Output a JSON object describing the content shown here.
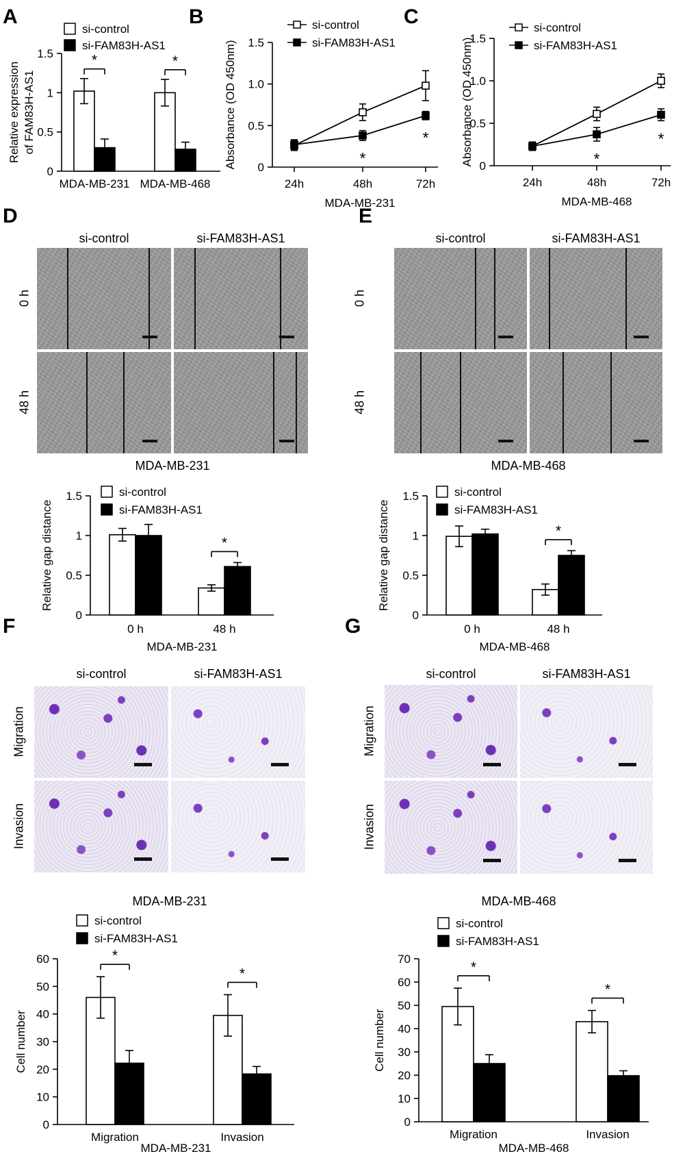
{
  "figure": {
    "panel_letters": [
      "A",
      "B",
      "C",
      "D",
      "E",
      "F",
      "G"
    ],
    "legend_labels": [
      "si-control",
      "si-FAM83H-AS1"
    ],
    "significance_mark": "*",
    "colors": {
      "control_fill": "#ffffff",
      "knockdown_fill": "#000000",
      "line": "#000000"
    }
  },
  "panel_D_images": {
    "col_headers": [
      "si-control",
      "si-FAM83H-AS1"
    ],
    "row_labels": [
      "0 h",
      "48 h"
    ],
    "caption": "MDA-MB-231"
  },
  "panel_E_images": {
    "col_headers": [
      "si-control",
      "si-FAM83H-AS1"
    ],
    "row_labels": [
      "0 h",
      "48 h"
    ],
    "caption": "MDA-MB-468"
  },
  "panel_F_images": {
    "col_headers": [
      "si-control",
      "si-FAM83H-AS1"
    ],
    "row_labels": [
      "Migration",
      "Invasion"
    ],
    "caption": "MDA-MB-231"
  },
  "panel_G_images": {
    "col_headers": [
      "si-control",
      "si-FAM83H-AS1"
    ],
    "row_labels": [
      "Migration",
      "Invasion"
    ],
    "caption": "MDA-MB-468"
  },
  "chart_data": [
    {
      "panel": "A",
      "type": "bar",
      "ylabel": "Relative expression of FAM83H-AS1",
      "xlabel": "",
      "categories": [
        "MDA-MB-231",
        "MDA-MB-468"
      ],
      "yticks": [
        0,
        0.5,
        1,
        1.5
      ],
      "ylim": [
        0,
        1.5
      ],
      "series": [
        {
          "name": "si-control",
          "values": [
            1.02,
            1.0
          ],
          "errors": [
            0.16,
            0.17
          ]
        },
        {
          "name": "si-FAM83H-AS1",
          "values": [
            0.3,
            0.28
          ],
          "errors": [
            0.11,
            0.09
          ]
        }
      ],
      "significance": [
        "*",
        "*"
      ]
    },
    {
      "panel": "B",
      "type": "line",
      "ylabel": "Absorbance (OD 450nm)",
      "xlabel": "MDA-MB-231",
      "categories": [
        "24h",
        "48h",
        "72h"
      ],
      "yticks": [
        0,
        0.5,
        1.0,
        1.5
      ],
      "ylim": [
        0,
        1.5
      ],
      "series": [
        {
          "name": "si-control",
          "values": [
            0.26,
            0.66,
            0.98
          ],
          "errors": [
            0.06,
            0.1,
            0.18
          ]
        },
        {
          "name": "si-FAM83H-AS1",
          "values": [
            0.27,
            0.38,
            0.62
          ],
          "errors": [
            0.06,
            0.06,
            0.05
          ]
        }
      ],
      "significance": [
        "",
        "*",
        "*"
      ]
    },
    {
      "panel": "C",
      "type": "line",
      "ylabel": "Absorbance (OD 450nm)",
      "xlabel": "MDA-MB-468",
      "categories": [
        "24h",
        "48h",
        "72h"
      ],
      "yticks": [
        0,
        0.5,
        1.0,
        1.5
      ],
      "ylim": [
        0,
        1.5
      ],
      "series": [
        {
          "name": "si-control",
          "values": [
            0.23,
            0.61,
            1.0
          ],
          "errors": [
            0.05,
            0.08,
            0.08
          ]
        },
        {
          "name": "si-FAM83H-AS1",
          "values": [
            0.23,
            0.37,
            0.6
          ],
          "errors": [
            0.05,
            0.08,
            0.07
          ]
        }
      ],
      "significance": [
        "",
        "*",
        "*"
      ]
    },
    {
      "panel": "D",
      "type": "bar",
      "ylabel": "Relative gap distance",
      "xlabel": "MDA-MB-231",
      "categories": [
        "0 h",
        "48 h"
      ],
      "yticks": [
        0,
        0.5,
        1,
        1.5
      ],
      "ylim": [
        0,
        1.5
      ],
      "series": [
        {
          "name": "si-control",
          "values": [
            1.01,
            0.34
          ],
          "errors": [
            0.08,
            0.04
          ]
        },
        {
          "name": "si-FAM83H-AS1",
          "values": [
            1.0,
            0.61
          ],
          "errors": [
            0.14,
            0.05
          ]
        }
      ],
      "significance": [
        "",
        "*"
      ]
    },
    {
      "panel": "E",
      "type": "bar",
      "ylabel": "Relative gap distance",
      "xlabel": "MDA-MB-468",
      "categories": [
        "0 h",
        "48 h"
      ],
      "yticks": [
        0,
        0.5,
        1,
        1.5
      ],
      "ylim": [
        0,
        1.5
      ],
      "series": [
        {
          "name": "si-control",
          "values": [
            0.99,
            0.32
          ],
          "errors": [
            0.13,
            0.07
          ]
        },
        {
          "name": "si-FAM83H-AS1",
          "values": [
            1.02,
            0.75
          ],
          "errors": [
            0.06,
            0.06
          ]
        }
      ],
      "significance": [
        "",
        "*"
      ]
    },
    {
      "panel": "F",
      "type": "bar",
      "ylabel": "Cell number",
      "xlabel": "MDA-MB-231",
      "categories": [
        "Migration",
        "Invasion"
      ],
      "yticks": [
        0,
        10,
        20,
        30,
        40,
        50,
        60
      ],
      "ylim": [
        0,
        60
      ],
      "series": [
        {
          "name": "si-control",
          "values": [
            46,
            39.5
          ],
          "errors": [
            7.5,
            7.5
          ]
        },
        {
          "name": "si-FAM83H-AS1",
          "values": [
            22.2,
            18.3
          ],
          "errors": [
            4.6,
            2.7
          ]
        }
      ],
      "significance": [
        "*",
        "*"
      ]
    },
    {
      "panel": "G",
      "type": "bar",
      "ylabel": "Cell number",
      "xlabel": "MDA-MB-468",
      "categories": [
        "Migration",
        "Invasion"
      ],
      "yticks": [
        0,
        10,
        20,
        30,
        40,
        50,
        60,
        70
      ],
      "ylim": [
        0,
        70
      ],
      "series": [
        {
          "name": "si-control",
          "values": [
            49.5,
            43
          ],
          "errors": [
            7.9,
            4.8
          ]
        },
        {
          "name": "si-FAM83H-AS1",
          "values": [
            25,
            19.8
          ],
          "errors": [
            3.8,
            2.1
          ]
        }
      ],
      "significance": [
        "*",
        "*"
      ]
    }
  ]
}
